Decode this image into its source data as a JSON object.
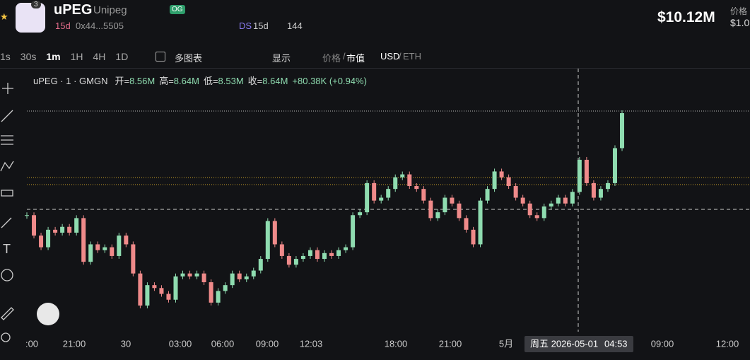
{
  "header": {
    "badge_count": "3",
    "name": "uPEG",
    "full_name": "Unipeg",
    "og": "OG",
    "age": "15d",
    "address": "0x44...5505",
    "ds": "DS",
    "ds_age": "15d",
    "holders": "144",
    "market_cap": "$10.12M",
    "price_label": "价格",
    "price": "$1.0"
  },
  "toolbar": {
    "intervals": [
      "1s",
      "30s",
      "1m",
      "1H",
      "4H",
      "1D"
    ],
    "multi_chart": "多图表",
    "display": "显示",
    "price": "价格",
    "mcap": "市值",
    "usd": "USD",
    "eth": "ETH"
  },
  "legend": {
    "symbol": "uPEG · 1 · GMGN",
    "items": [
      {
        "label": "开=",
        "value": "8.56M"
      },
      {
        "label": "高=",
        "value": "8.64M"
      },
      {
        "label": "低=",
        "value": "8.53M"
      },
      {
        "label": "收=",
        "value": "8.64M"
      }
    ],
    "change": "+80.38K (+0.94%)"
  },
  "chart": {
    "type": "candlestick",
    "closes": [
      8.29,
      8.22,
      8.18,
      8.24,
      8.23,
      8.25,
      8.23,
      8.28,
      8.13,
      8.19,
      8.17,
      8.18,
      8.15,
      8.22,
      8.19,
      8.09,
      7.98,
      8.05,
      8.04,
      8.02,
      8.0,
      8.08,
      8.09,
      8.08,
      8.09,
      8.06,
      7.99,
      8.03,
      8.05,
      8.09,
      8.07,
      8.08,
      8.1,
      8.14,
      8.27,
      8.19,
      8.15,
      8.12,
      8.14,
      8.15,
      8.17,
      8.14,
      8.16,
      8.15,
      8.17,
      8.18,
      8.29,
      8.3,
      8.4,
      8.34,
      8.35,
      8.38,
      8.42,
      8.43,
      8.39,
      8.38,
      8.34,
      8.28,
      8.3,
      8.35,
      8.33,
      8.28,
      8.24,
      8.19,
      8.34,
      8.38,
      8.44,
      8.42,
      8.39,
      8.35,
      8.33,
      8.29,
      8.28,
      8.32,
      8.33,
      8.35,
      8.33,
      8.37,
      8.48,
      8.4,
      8.35,
      8.38,
      8.4,
      8.52,
      8.64
    ],
    "x_labels": [
      ":00",
      "21:00",
      "30",
      "03:00",
      "06:00",
      "09:00",
      "12:03",
      "18:00",
      "21:00",
      "5月",
      "09:00",
      "12:00"
    ],
    "cursor_date": "周五 2026-05-01",
    "cursor_time": "04:53"
  }
}
